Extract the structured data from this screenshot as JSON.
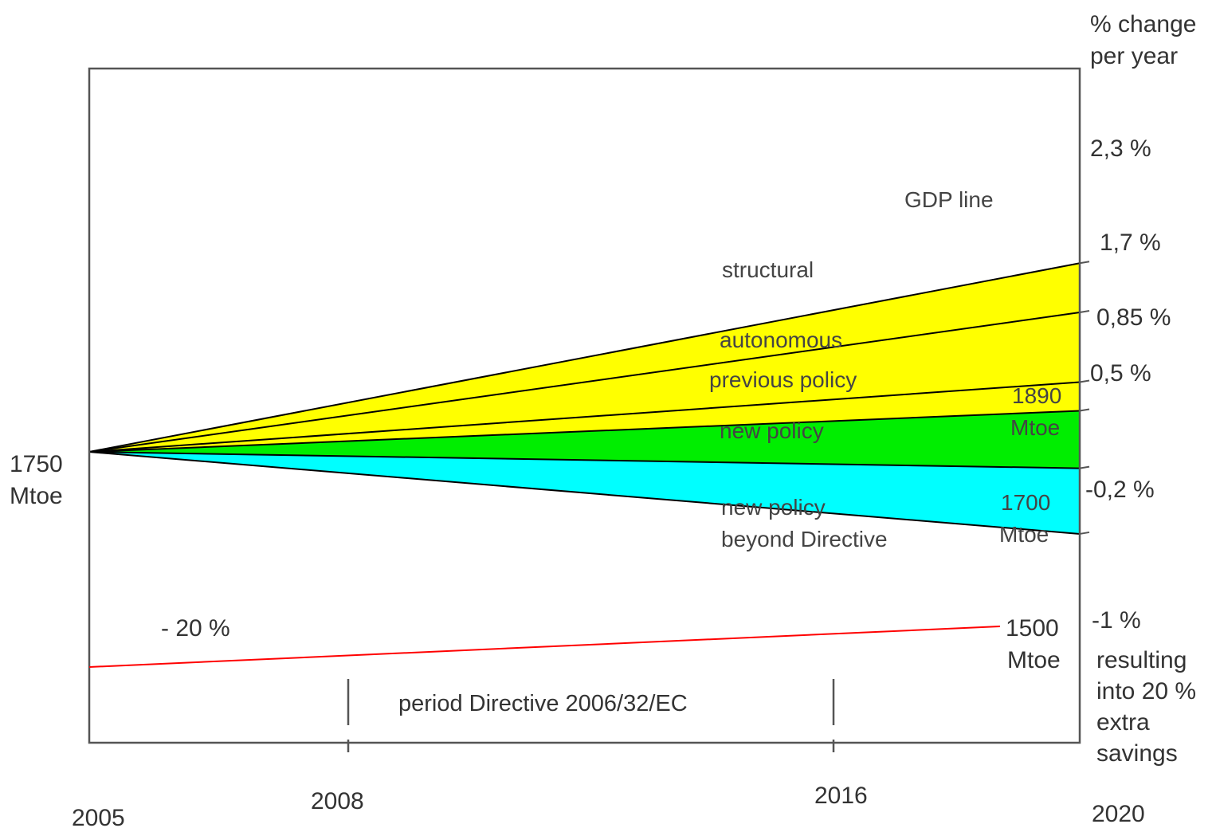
{
  "chart_data": {
    "type": "area",
    "x": [
      2005,
      2008,
      2016,
      2020
    ],
    "x_tick_labels": [
      "2005",
      "2008",
      "2016",
      "2020"
    ],
    "start_value": 1750,
    "start_unit": "Mtoe",
    "right_axis_title": [
      "% change",
      "per year"
    ],
    "rates": [
      {
        "key": "gdp",
        "pct": 2.3,
        "label": "2,3 %"
      },
      {
        "key": "structural",
        "pct": 1.7,
        "label": "1,7 %"
      },
      {
        "key": "autonomous",
        "pct": 0.85,
        "label": "0,85 %"
      },
      {
        "key": "previous",
        "pct": 0.5,
        "label": "0,5 %"
      },
      {
        "key": "new",
        "pct": -0.2,
        "label": "-0,2 %"
      },
      {
        "key": "beyond",
        "pct": -1.0,
        "label": "-1 %"
      }
    ],
    "bands": [
      {
        "name": "structural",
        "from": "structural",
        "to": "gdp",
        "color": "#ffff00"
      },
      {
        "name": "autonomous",
        "from": "autonomous",
        "to": "structural",
        "color": "#ffff00"
      },
      {
        "name": "previous policy",
        "from": "previous",
        "to": "autonomous",
        "color": "#ffff00"
      },
      {
        "name": "new policy",
        "from": "new",
        "to": "previous",
        "color": "#00ee00"
      },
      {
        "name": "new policy beyond Directive",
        "from": "beyond",
        "to": "new",
        "color": "#00ffff"
      }
    ],
    "line_labels": {
      "gdp": "GDP line"
    },
    "band_labels": {
      "structural": "structural",
      "autonomous": "autonomous",
      "previous": "previous policy",
      "new": "new policy",
      "beyond_1": "new policy",
      "beyond_2": "beyond Directive"
    },
    "value_annotations": [
      {
        "value": "1890",
        "unit": "Mtoe"
      },
      {
        "value": "1700",
        "unit": "Mtoe"
      }
    ],
    "target": {
      "label": "- 20 %",
      "end_value": "1500",
      "end_unit": "Mtoe",
      "color": "#ff0000"
    },
    "start_label": {
      "value": "1750",
      "unit": "Mtoe"
    },
    "period_label": "period Directive 2006/32/EC",
    "footnote": [
      "resulting",
      "into 20 %",
      "extra",
      "savings"
    ],
    "line_color": "#000000"
  }
}
